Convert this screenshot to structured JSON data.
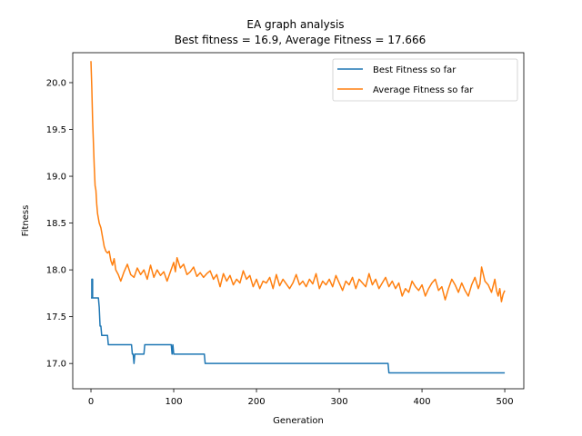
{
  "chart_data": {
    "type": "line",
    "title": "EA graph analysis",
    "subtitle": "Best fitness = 16.9, Average Fitness = 17.666",
    "xlabel": "Generation",
    "ylabel": "Fitness",
    "xlim": [
      -22,
      523
    ],
    "ylim": [
      16.73,
      20.32
    ],
    "xticks": [
      0,
      100,
      200,
      300,
      400,
      500
    ],
    "yticks": [
      17.0,
      17.5,
      18.0,
      18.5,
      19.0,
      19.5,
      20.0
    ],
    "ytick_labels": [
      "17.0",
      "17.5",
      "18.0",
      "18.5",
      "19.0",
      "19.5",
      "20.0"
    ],
    "grid": false,
    "legend_position": "top-right",
    "series": [
      {
        "name": "Best Fitness so far",
        "color": "#1f77b4",
        "x": [
          0,
          1,
          1,
          2,
          2,
          9,
          10,
          11,
          12,
          13,
          14,
          15,
          20,
          21,
          49,
          50,
          51,
          52,
          53,
          54,
          55,
          64,
          65,
          97,
          98,
          99,
          100,
          101,
          137,
          138,
          359,
          360,
          500
        ],
        "y": [
          17.7,
          17.7,
          17.9,
          17.9,
          17.7,
          17.7,
          17.6,
          17.4,
          17.4,
          17.3,
          17.3,
          17.3,
          17.3,
          17.2,
          17.2,
          17.1,
          17.1,
          17.0,
          17.1,
          17.1,
          17.1,
          17.1,
          17.2,
          17.2,
          17.1,
          17.2,
          17.1,
          17.1,
          17.1,
          17.0,
          17.0,
          16.9,
          16.9
        ]
      },
      {
        "name": "Average Fitness so far",
        "color": "#ff7f0e",
        "x": [
          0,
          1,
          2,
          3,
          4,
          5,
          6,
          7,
          8,
          10,
          12,
          14,
          16,
          18,
          20,
          22,
          24,
          26,
          28,
          30,
          33,
          36,
          40,
          44,
          48,
          52,
          56,
          60,
          64,
          68,
          72,
          76,
          80,
          84,
          88,
          92,
          96,
          100,
          102,
          104,
          108,
          112,
          116,
          120,
          124,
          128,
          132,
          136,
          140,
          144,
          148,
          152,
          156,
          160,
          164,
          168,
          172,
          176,
          180,
          184,
          188,
          192,
          196,
          200,
          204,
          208,
          212,
          216,
          220,
          224,
          228,
          232,
          236,
          240,
          244,
          248,
          252,
          256,
          260,
          264,
          268,
          272,
          276,
          280,
          284,
          288,
          292,
          296,
          300,
          304,
          308,
          312,
          316,
          320,
          324,
          328,
          332,
          336,
          340,
          344,
          348,
          352,
          356,
          360,
          364,
          368,
          372,
          376,
          380,
          384,
          388,
          392,
          396,
          400,
          404,
          408,
          412,
          416,
          420,
          424,
          428,
          432,
          436,
          440,
          444,
          448,
          452,
          456,
          460,
          464,
          468,
          470,
          472,
          476,
          480,
          484,
          488,
          490,
          492,
          494,
          496,
          498,
          500
        ],
        "y": [
          20.23,
          19.95,
          19.6,
          19.35,
          19.1,
          18.9,
          18.85,
          18.7,
          18.6,
          18.5,
          18.45,
          18.35,
          18.25,
          18.2,
          18.18,
          18.2,
          18.1,
          18.05,
          18.12,
          18.0,
          17.95,
          17.88,
          17.98,
          18.06,
          17.95,
          17.92,
          18.02,
          17.95,
          18.0,
          17.9,
          18.05,
          17.92,
          18.0,
          17.94,
          17.98,
          17.88,
          17.98,
          18.08,
          17.98,
          18.13,
          18.02,
          18.06,
          17.95,
          17.98,
          18.03,
          17.93,
          17.97,
          17.92,
          17.96,
          17.99,
          17.9,
          17.95,
          17.82,
          17.96,
          17.88,
          17.94,
          17.84,
          17.9,
          17.86,
          17.99,
          17.9,
          17.94,
          17.82,
          17.9,
          17.8,
          17.88,
          17.86,
          17.92,
          17.8,
          17.95,
          17.83,
          17.9,
          17.85,
          17.8,
          17.86,
          17.95,
          17.84,
          17.88,
          17.82,
          17.9,
          17.85,
          17.96,
          17.8,
          17.88,
          17.84,
          17.9,
          17.82,
          17.94,
          17.86,
          17.78,
          17.88,
          17.84,
          17.92,
          17.8,
          17.9,
          17.86,
          17.82,
          17.96,
          17.84,
          17.9,
          17.8,
          17.86,
          17.92,
          17.82,
          17.88,
          17.8,
          17.86,
          17.72,
          17.8,
          17.76,
          17.88,
          17.82,
          17.78,
          17.84,
          17.72,
          17.8,
          17.86,
          17.9,
          17.78,
          17.82,
          17.68,
          17.8,
          17.9,
          17.84,
          17.76,
          17.86,
          17.78,
          17.72,
          17.84,
          17.92,
          17.8,
          17.85,
          18.03,
          17.88,
          17.84,
          17.76,
          17.9,
          17.78,
          17.72,
          17.8,
          17.66,
          17.74,
          17.78
        ]
      }
    ]
  }
}
